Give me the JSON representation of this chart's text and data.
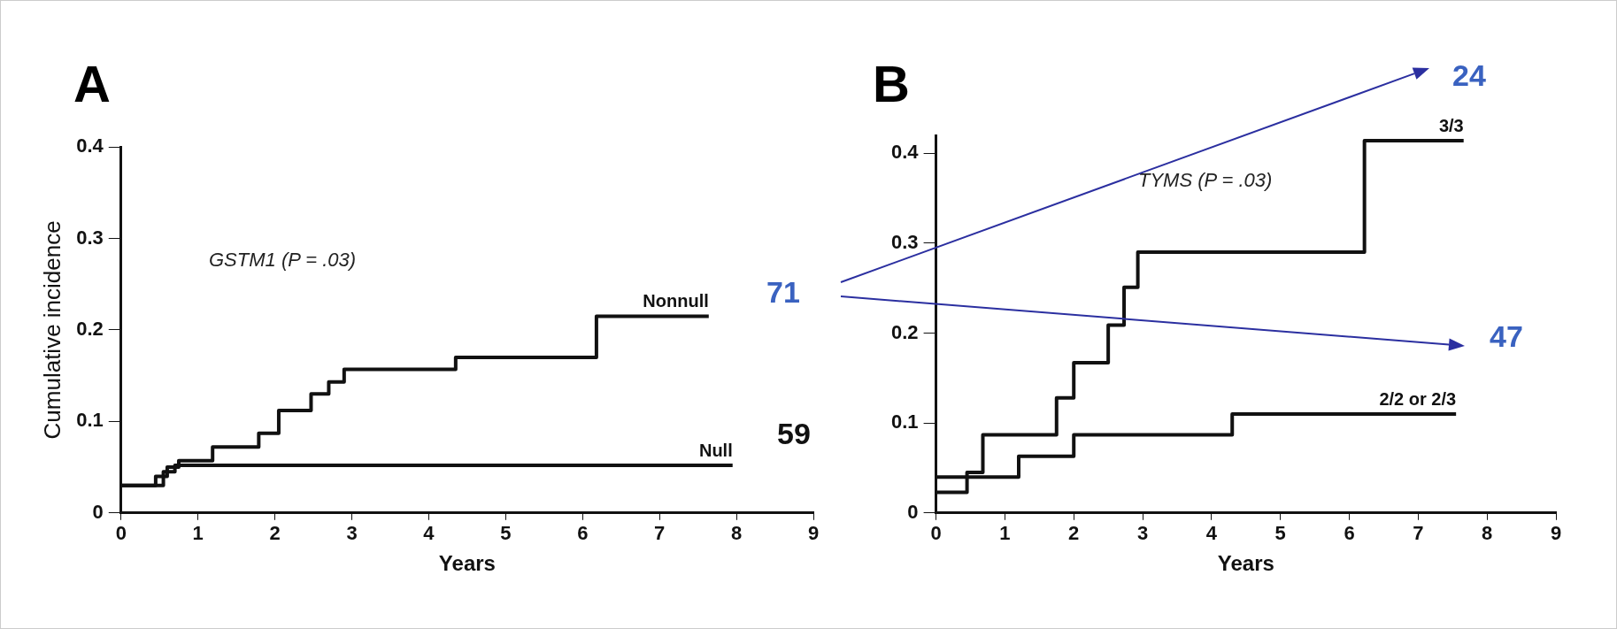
{
  "chart_data": [
    {
      "type": "step",
      "title": "A",
      "xlabel": "Years",
      "ylabel": "Cumulative incidence",
      "xlim": [
        0,
        9
      ],
      "xticks": [
        0,
        1,
        2,
        3,
        4,
        5,
        6,
        7,
        8,
        9
      ],
      "ylim": [
        0,
        0.4
      ],
      "yticks": [
        0,
        0.1,
        0.2,
        0.3,
        0.4
      ],
      "grid": false,
      "legend": false,
      "annotations": [
        "GSTM1 (P = .03)",
        "71",
        "59"
      ],
      "series": [
        {
          "name": "Nonnull",
          "color": "#111111",
          "x": [
            0,
            0.45,
            0.6,
            0.75,
            1.19,
            1.79,
            2.05,
            2.47,
            2.7,
            2.9,
            4.35,
            6.18,
            7.64
          ],
          "values": [
            0.03,
            0.04,
            0.05,
            0.057,
            0.072,
            0.087,
            0.112,
            0.13,
            0.143,
            0.157,
            0.17,
            0.215,
            0.215
          ]
        },
        {
          "name": "Null",
          "color": "#111111",
          "x": [
            0,
            0.55,
            0.7,
            7.95
          ],
          "values": [
            0.03,
            0.045,
            0.052,
            0.052
          ]
        }
      ]
    },
    {
      "type": "step",
      "title": "B",
      "xlabel": "Years",
      "xlim": [
        0,
        9
      ],
      "xticks": [
        0,
        1,
        2,
        3,
        4,
        5,
        6,
        7,
        8,
        9
      ],
      "ylim": [
        0,
        0.42
      ],
      "yticks": [
        0,
        0.1,
        0.2,
        0.3,
        0.4
      ],
      "grid": false,
      "legend": false,
      "annotations": [
        "TYMS (P = .03)",
        "24",
        "47"
      ],
      "series": [
        {
          "name": "3/3",
          "color": "#111111",
          "x": [
            0,
            0.45,
            0.68,
            1.75,
            2.0,
            2.5,
            2.73,
            2.93,
            6.22,
            7.66
          ],
          "values": [
            0.023,
            0.045,
            0.087,
            0.128,
            0.167,
            0.209,
            0.251,
            0.29,
            0.414,
            0.414
          ]
        },
        {
          "name": "2/2 or 2/3",
          "color": "#111111",
          "x": [
            0,
            1.2,
            2.0,
            4.3,
            7.55
          ],
          "values": [
            0.04,
            0.063,
            0.087,
            0.11,
            0.11
          ]
        }
      ]
    }
  ]
}
